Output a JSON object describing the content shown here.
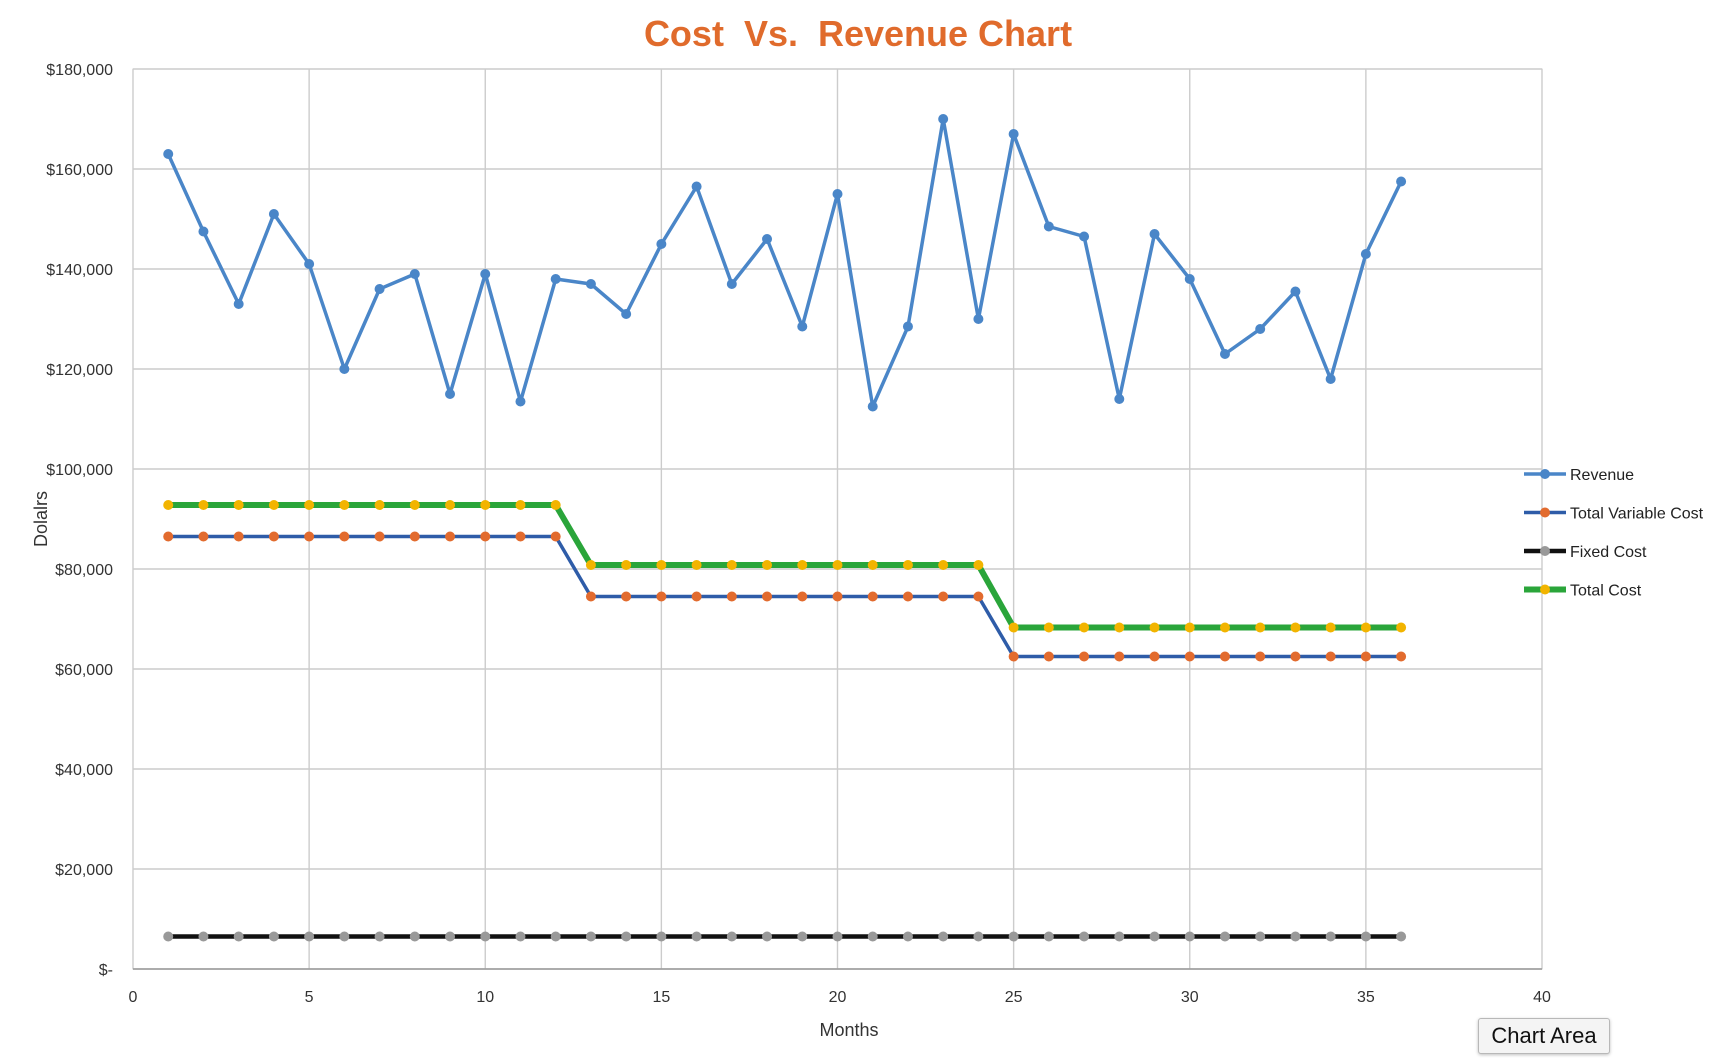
{
  "chart_data": {
    "type": "line",
    "title": "Cost  Vs.  Revenue Chart",
    "xlabel": "Months",
    "ylabel": "Dolalrs",
    "xlim": [
      0,
      40
    ],
    "ylim": [
      0,
      180000
    ],
    "x_ticks": [
      0,
      5,
      10,
      15,
      20,
      25,
      30,
      35,
      40
    ],
    "y_ticks": [
      0,
      20000,
      40000,
      60000,
      80000,
      100000,
      120000,
      140000,
      160000,
      180000
    ],
    "x_tick_labels": [
      "0",
      "5",
      "10",
      "15",
      "20",
      "25",
      "30",
      "35",
      "40"
    ],
    "y_tick_labels": [
      "$-",
      "$20,000",
      "$40,000",
      "$60,000",
      "$80,000",
      "$100,000",
      "$120,000",
      "$140,000",
      "$160,000",
      "$180,000"
    ],
    "grid": true,
    "legend_position": "right",
    "x": [
      1,
      2,
      3,
      4,
      5,
      6,
      7,
      8,
      9,
      10,
      11,
      12,
      13,
      14,
      15,
      16,
      17,
      18,
      19,
      20,
      21,
      22,
      23,
      24,
      25,
      26,
      27,
      28,
      29,
      30,
      31,
      32,
      33,
      34,
      35,
      36
    ],
    "series": [
      {
        "name": "Revenue",
        "line_color": "#4a86c8",
        "marker_color": "#4a86c8",
        "values": [
          163000,
          147500,
          133000,
          151000,
          141000,
          120000,
          136000,
          139000,
          115000,
          139000,
          113500,
          138000,
          137000,
          131000,
          145000,
          156500,
          137000,
          146000,
          128500,
          155000,
          112500,
          128500,
          170000,
          130000,
          167000,
          148500,
          146500,
          114000,
          147000,
          138000,
          123000,
          128000,
          135500,
          118000,
          143000,
          157500
        ]
      },
      {
        "name": "Total Variable Cost",
        "line_color": "#2e5ca8",
        "marker_color": "#e26b2e",
        "values": [
          86500,
          86500,
          86500,
          86500,
          86500,
          86500,
          86500,
          86500,
          86500,
          86500,
          86500,
          86500,
          74500,
          74500,
          74500,
          74500,
          74500,
          74500,
          74500,
          74500,
          74500,
          74500,
          74500,
          74500,
          62500,
          62500,
          62500,
          62500,
          62500,
          62500,
          62500,
          62500,
          62500,
          62500,
          62500,
          62500
        ]
      },
      {
        "name": "Fixed Cost",
        "line_color": "#111111",
        "marker_color": "#999999",
        "values": [
          6500,
          6500,
          6500,
          6500,
          6500,
          6500,
          6500,
          6500,
          6500,
          6500,
          6500,
          6500,
          6500,
          6500,
          6500,
          6500,
          6500,
          6500,
          6500,
          6500,
          6500,
          6500,
          6500,
          6500,
          6500,
          6500,
          6500,
          6500,
          6500,
          6500,
          6500,
          6500,
          6500,
          6500,
          6500,
          6500
        ]
      },
      {
        "name": "Total Cost",
        "line_color": "#2aa53a",
        "marker_color": "#f2b400",
        "values": [
          92800,
          92800,
          92800,
          92800,
          92800,
          92800,
          92800,
          92800,
          92800,
          92800,
          92800,
          92800,
          80800,
          80800,
          80800,
          80800,
          80800,
          80800,
          80800,
          80800,
          80800,
          80800,
          80800,
          80800,
          68300,
          68300,
          68300,
          68300,
          68300,
          68300,
          68300,
          68300,
          68300,
          68300,
          68300,
          68300
        ]
      }
    ]
  },
  "colors": {
    "title": "#e06b2c",
    "grid": "#cccccc",
    "axis": "#999999"
  },
  "tooltip": {
    "label": "Chart Area"
  }
}
